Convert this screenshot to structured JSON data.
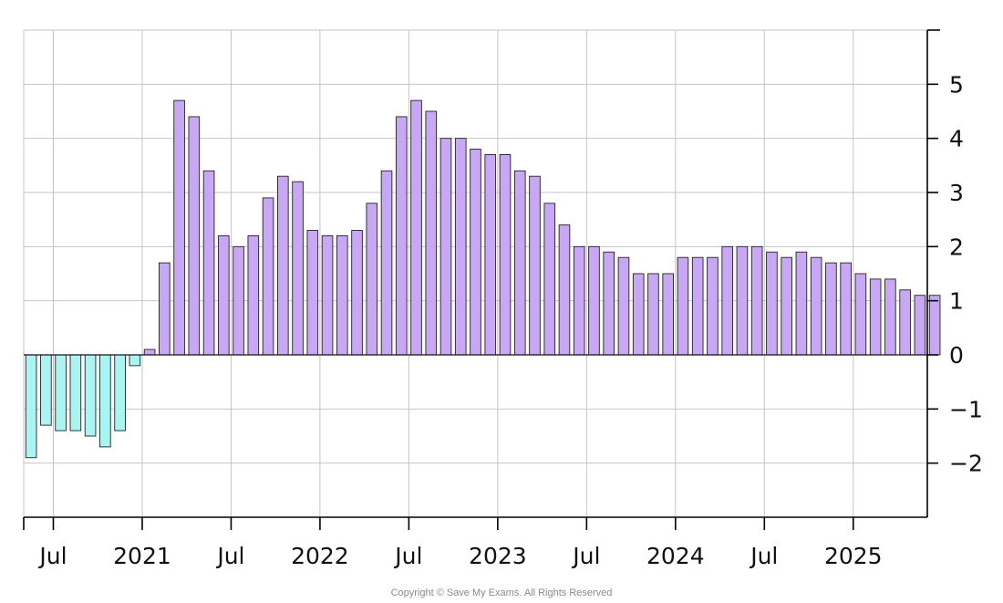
{
  "chart_data": {
    "type": "bar",
    "title": "",
    "xlabel": "",
    "ylabel": "",
    "ylim": [
      -3,
      6
    ],
    "y_ticks": [
      -2,
      -1,
      0,
      1,
      2,
      3,
      4,
      5
    ],
    "y_tick_labels": [
      "−2",
      "−1",
      "0",
      "1",
      "2",
      "3",
      "4",
      "5"
    ],
    "y_axis_side": "right",
    "grid": true,
    "x_start": "2020-05",
    "x_tick_labels": [
      {
        "month": "2020-07",
        "label": "Jul"
      },
      {
        "month": "2021-01",
        "label": "2021"
      },
      {
        "month": "2021-07",
        "label": "Jul"
      },
      {
        "month": "2022-01",
        "label": "2022"
      },
      {
        "month": "2022-07",
        "label": "Jul"
      },
      {
        "month": "2023-01",
        "label": "2023"
      },
      {
        "month": "2023-07",
        "label": "Jul"
      },
      {
        "month": "2024-01",
        "label": "2024"
      },
      {
        "month": "2024-07",
        "label": "Jul"
      },
      {
        "month": "2025-01",
        "label": "2025"
      }
    ],
    "months": [
      "2020-06",
      "2020-07",
      "2020-08",
      "2020-09",
      "2020-10",
      "2020-11",
      "2020-12",
      "2021-01",
      "2021-02",
      "2021-03",
      "2021-04",
      "2021-05",
      "2021-06",
      "2021-07",
      "2021-08",
      "2021-09",
      "2021-10",
      "2021-11",
      "2021-12",
      "2022-01",
      "2022-02",
      "2022-03",
      "2022-04",
      "2022-05",
      "2022-06",
      "2022-07",
      "2022-08",
      "2022-09",
      "2022-10",
      "2022-11",
      "2022-12",
      "2023-01",
      "2023-02",
      "2023-03",
      "2023-04",
      "2023-05",
      "2023-06",
      "2023-07",
      "2023-08",
      "2023-09",
      "2023-10",
      "2023-11",
      "2023-12",
      "2024-01",
      "2024-02",
      "2024-03",
      "2024-04",
      "2024-05",
      "2024-06",
      "2024-07",
      "2024-08",
      "2024-09",
      "2024-10",
      "2024-11",
      "2024-12",
      "2025-01",
      "2025-02",
      "2025-03",
      "2025-04",
      "2025-05",
      "2025-06",
      "2025-07"
    ],
    "values": [
      -1.9,
      -1.3,
      -1.4,
      -1.4,
      -1.5,
      -1.7,
      -1.4,
      -0.2,
      0.1,
      1.7,
      4.7,
      4.4,
      3.4,
      2.2,
      2.0,
      2.2,
      2.9,
      3.3,
      3.2,
      2.3,
      2.2,
      2.2,
      2.3,
      2.8,
      3.4,
      4.4,
      4.7,
      4.5,
      4.0,
      4.0,
      3.8,
      3.7,
      3.7,
      3.4,
      3.3,
      2.8,
      2.4,
      2.0,
      2.0,
      1.9,
      1.8,
      1.5,
      1.5,
      1.5,
      1.8,
      1.8,
      1.8,
      2.0,
      2.0,
      2.0,
      1.9,
      1.8,
      1.9,
      1.8,
      1.7,
      1.7,
      1.5,
      1.4,
      1.4,
      1.2,
      1.1,
      1.1
    ],
    "colors": {
      "positive_fill": "#c8a8f5",
      "negative_fill": "#a8f5f2",
      "bar_stroke": "#222222",
      "grid": "#c4c4c4",
      "axis": "#000000"
    }
  },
  "footer": {
    "copyright": "Copyright © Save My Exams. All Rights Reserved"
  }
}
